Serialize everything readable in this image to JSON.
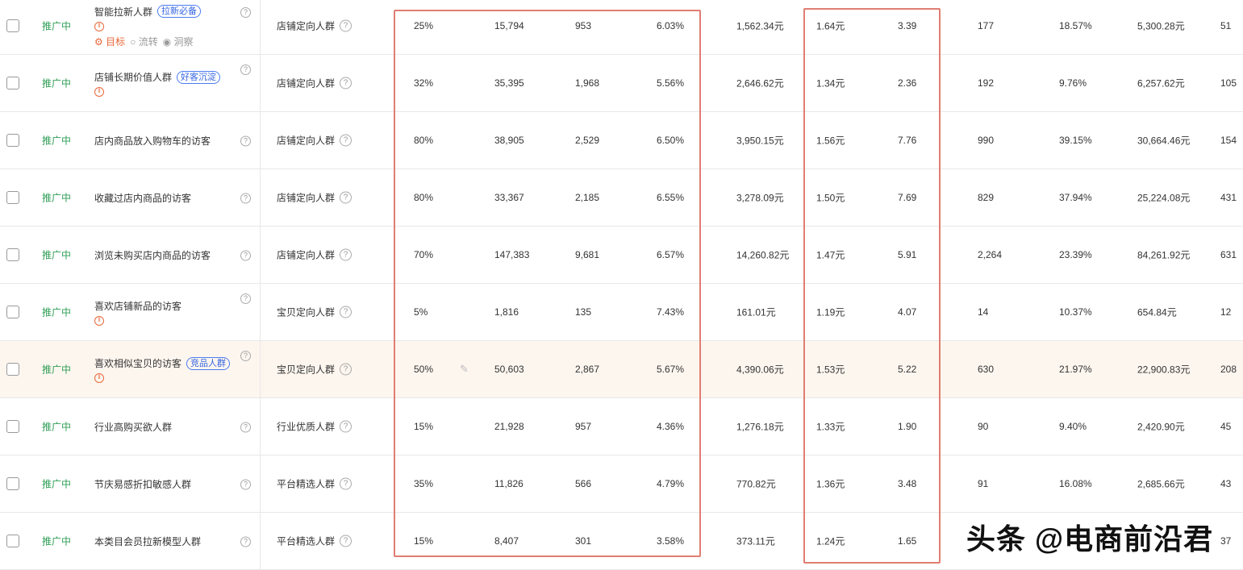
{
  "rows": [
    {
      "status": "推广中",
      "name": "智能拉新人群",
      "tag": "拉新必备",
      "paused": true,
      "actions": {
        "goal": "目标",
        "flow": "流转",
        "insight": "洞察"
      },
      "type": "店铺定向人群",
      "premium": "25%",
      "impressions": "15,794",
      "clicks": "953",
      "ctr": "6.03%",
      "cost": "1,562.34元",
      "cpc": "1.64元",
      "roi": "3.39",
      "c1": "177",
      "c2": "18.57%",
      "c3": "5,300.28元",
      "c4": "51"
    },
    {
      "status": "推广中",
      "name": "店铺长期价值人群",
      "tag": "好客沉淀",
      "paused": true,
      "type": "店铺定向人群",
      "premium": "32%",
      "impressions": "35,395",
      "clicks": "1,968",
      "ctr": "5.56%",
      "cost": "2,646.62元",
      "cpc": "1.34元",
      "roi": "2.36",
      "c1": "192",
      "c2": "9.76%",
      "c3": "6,257.62元",
      "c4": "105"
    },
    {
      "status": "推广中",
      "name": "店内商品放入购物车的访客",
      "type": "店铺定向人群",
      "premium": "80%",
      "impressions": "38,905",
      "clicks": "2,529",
      "ctr": "6.50%",
      "cost": "3,950.15元",
      "cpc": "1.56元",
      "roi": "7.76",
      "c1": "990",
      "c2": "39.15%",
      "c3": "30,664.46元",
      "c4": "154"
    },
    {
      "status": "推广中",
      "name": "收藏过店内商品的访客",
      "type": "店铺定向人群",
      "premium": "80%",
      "impressions": "33,367",
      "clicks": "2,185",
      "ctr": "6.55%",
      "cost": "3,278.09元",
      "cpc": "1.50元",
      "roi": "7.69",
      "c1": "829",
      "c2": "37.94%",
      "c3": "25,224.08元",
      "c4": "431"
    },
    {
      "status": "推广中",
      "name": "浏览未购买店内商品的访客",
      "type": "店铺定向人群",
      "premium": "70%",
      "impressions": "147,383",
      "clicks": "9,681",
      "ctr": "6.57%",
      "cost": "14,260.82元",
      "cpc": "1.47元",
      "roi": "5.91",
      "c1": "2,264",
      "c2": "23.39%",
      "c3": "84,261.92元",
      "c4": "631"
    },
    {
      "status": "推广中",
      "name": "喜欢店铺新品的访客",
      "paused": true,
      "type": "宝贝定向人群",
      "premium": "5%",
      "impressions": "1,816",
      "clicks": "135",
      "ctr": "7.43%",
      "cost": "161.01元",
      "cpc": "1.19元",
      "roi": "4.07",
      "c1": "14",
      "c2": "10.37%",
      "c3": "654.84元",
      "c4": "12"
    },
    {
      "status": "推广中",
      "name": "喜欢相似宝贝的访客",
      "tag": "竞品人群",
      "paused": true,
      "highlight": true,
      "type": "宝贝定向人群",
      "premium": "50%",
      "impressions": "50,603",
      "clicks": "2,867",
      "ctr": "5.67%",
      "cost": "4,390.06元",
      "cpc": "1.53元",
      "roi": "5.22",
      "c1": "630",
      "c2": "21.97%",
      "c3": "22,900.83元",
      "c4": "208"
    },
    {
      "status": "推广中",
      "name": "行业高购买欲人群",
      "type": "行业优质人群",
      "premium": "15%",
      "impressions": "21,928",
      "clicks": "957",
      "ctr": "4.36%",
      "cost": "1,276.18元",
      "cpc": "1.33元",
      "roi": "1.90",
      "c1": "90",
      "c2": "9.40%",
      "c3": "2,420.90元",
      "c4": "45"
    },
    {
      "status": "推广中",
      "name": "节庆易感折扣敏感人群",
      "type": "平台精选人群",
      "premium": "35%",
      "impressions": "11,826",
      "clicks": "566",
      "ctr": "4.79%",
      "cost": "770.82元",
      "cpc": "1.36元",
      "roi": "3.48",
      "c1": "91",
      "c2": "16.08%",
      "c3": "2,685.66元",
      "c4": "43"
    },
    {
      "status": "推广中",
      "name": "本类目会员拉新模型人群",
      "type": "平台精选人群",
      "premium": "15%",
      "impressions": "8,407",
      "clicks": "301",
      "ctr": "3.58%",
      "cost": "373.11元",
      "cpc": "1.24元",
      "roi": "1.65",
      "c4": "37"
    }
  ],
  "watermark": "头条 @电商前沿君",
  "colors": {
    "status": "#2e9e55",
    "tag": "#3565e0",
    "highlight_box": "#e07d72",
    "pause": "#e8683a"
  }
}
